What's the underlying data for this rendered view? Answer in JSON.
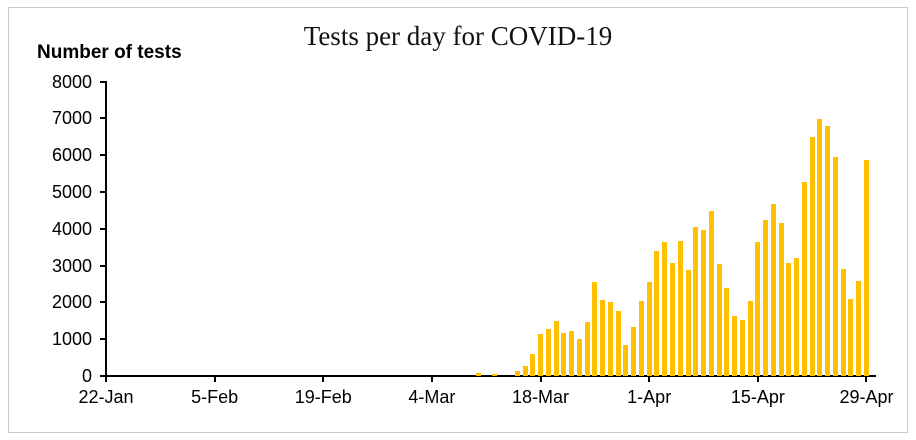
{
  "chart_data": {
    "type": "bar",
    "title": "Tests per day for COVID-19",
    "y_axis_title": "Number of tests",
    "ylim": [
      0,
      8000
    ],
    "y_ticks": [
      0,
      1000,
      2000,
      3000,
      4000,
      5000,
      6000,
      7000,
      8000
    ],
    "x_tick_indices": [
      0,
      14,
      28,
      42,
      56,
      70,
      84,
      98
    ],
    "x_tick_labels": [
      "22-Jan",
      "5-Feb",
      "19-Feb",
      "4-Mar",
      "18-Mar",
      "1-Apr",
      "15-Apr",
      "29-Apr"
    ],
    "grid": false,
    "legend": "none",
    "bar_color": "#FFC000",
    "axis_color": "#000000",
    "frame_border_color": "#c9c9c9",
    "categories": [
      "22-Jan",
      "23-Jan",
      "24-Jan",
      "25-Jan",
      "26-Jan",
      "27-Jan",
      "28-Jan",
      "29-Jan",
      "30-Jan",
      "31-Jan",
      "1-Feb",
      "2-Feb",
      "3-Feb",
      "4-Feb",
      "5-Feb",
      "6-Feb",
      "7-Feb",
      "8-Feb",
      "9-Feb",
      "10-Feb",
      "11-Feb",
      "12-Feb",
      "13-Feb",
      "14-Feb",
      "15-Feb",
      "16-Feb",
      "17-Feb",
      "18-Feb",
      "19-Feb",
      "20-Feb",
      "21-Feb",
      "22-Feb",
      "23-Feb",
      "24-Feb",
      "25-Feb",
      "26-Feb",
      "27-Feb",
      "28-Feb",
      "29-Feb",
      "1-Mar",
      "2-Mar",
      "3-Mar",
      "4-Mar",
      "5-Mar",
      "6-Mar",
      "7-Mar",
      "8-Mar",
      "9-Mar",
      "10-Mar",
      "11-Mar",
      "12-Mar",
      "13-Mar",
      "14-Mar",
      "15-Mar",
      "16-Mar",
      "17-Mar",
      "18-Mar",
      "19-Mar",
      "20-Mar",
      "21-Mar",
      "22-Mar",
      "23-Mar",
      "24-Mar",
      "25-Mar",
      "26-Mar",
      "27-Mar",
      "28-Mar",
      "29-Mar",
      "30-Mar",
      "31-Mar",
      "1-Apr",
      "2-Apr",
      "3-Apr",
      "4-Apr",
      "5-Apr",
      "6-Apr",
      "7-Apr",
      "8-Apr",
      "9-Apr",
      "10-Apr",
      "11-Apr",
      "12-Apr",
      "13-Apr",
      "14-Apr",
      "15-Apr",
      "16-Apr",
      "17-Apr",
      "18-Apr",
      "19-Apr",
      "20-Apr",
      "21-Apr",
      "22-Apr",
      "23-Apr",
      "24-Apr",
      "25-Apr",
      "26-Apr",
      "27-Apr",
      "28-Apr",
      "29-Apr"
    ],
    "values": [
      0,
      0,
      0,
      0,
      0,
      0,
      0,
      0,
      0,
      0,
      0,
      0,
      0,
      0,
      0,
      0,
      0,
      0,
      0,
      0,
      0,
      0,
      0,
      0,
      0,
      0,
      0,
      0,
      0,
      0,
      0,
      0,
      0,
      0,
      0,
      0,
      0,
      0,
      0,
      0,
      0,
      0,
      0,
      0,
      0,
      0,
      0,
      0,
      80,
      0,
      60,
      0,
      0,
      130,
      280,
      600,
      1150,
      1270,
      1500,
      1180,
      1220,
      1000,
      1480,
      2560,
      2070,
      2020,
      1760,
      840,
      1330,
      2050,
      2540,
      3390,
      3630,
      3060,
      3680,
      2870,
      4040,
      3970,
      4490,
      3040,
      2390,
      1620,
      1510,
      2040,
      3630,
      4240,
      4670,
      4150,
      3070,
      3200,
      5270,
      6480,
      6990,
      6780,
      5960,
      2900,
      2090,
      2570,
      5880
    ]
  }
}
